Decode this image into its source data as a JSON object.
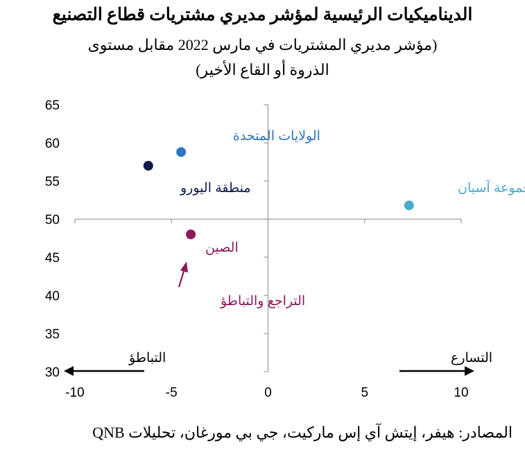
{
  "title_line1": "الديناميكيات الرئيسية لمؤشر مديري مشتريات قطاع التصنيع",
  "title_line2": "(مؤشر مديري المشتريات في مارس 2022 مقابل مستوى",
  "title_line3": "الذروة أو القاع الأخير)",
  "source": "المصادر: هيفر، إيتش آي إس ماركيت، جي بي مورغان، تحليلات QNB",
  "direction_left": "التباطؤ",
  "direction_right": "التسارع",
  "annotation_arrow": "التراجع والتباطؤ",
  "colors": {
    "us": "#2e75c0",
    "euro": "#0d1b45",
    "asia": "#4aaac8",
    "china": "#8b1a5c",
    "axis": "#a0a0a0"
  },
  "chart_data": {
    "type": "scatter",
    "title": "الديناميكيات الرئيسية لمؤشر مديري مشتريات قطاع التصنيع",
    "xlim": [
      -10,
      10
    ],
    "ylim": [
      30,
      65
    ],
    "xticks": [
      -10,
      -5,
      0,
      5,
      10
    ],
    "yticks": [
      30,
      35,
      40,
      45,
      50,
      55,
      60,
      65
    ],
    "grid": false,
    "series": [
      {
        "name": "الولايات المتحدة",
        "color": "#2e75c0",
        "x": -4.5,
        "y": 58.8
      },
      {
        "name": "منطقة اليورو",
        "color": "#0d1b45",
        "x": -6.2,
        "y": 57.0
      },
      {
        "name": "مجموعة آسيان",
        "color": "#4aaac8",
        "x": 7.3,
        "y": 51.8
      },
      {
        "name": "الصين",
        "color": "#8b1a5c",
        "x": -4.0,
        "y": 48.0
      }
    ]
  }
}
